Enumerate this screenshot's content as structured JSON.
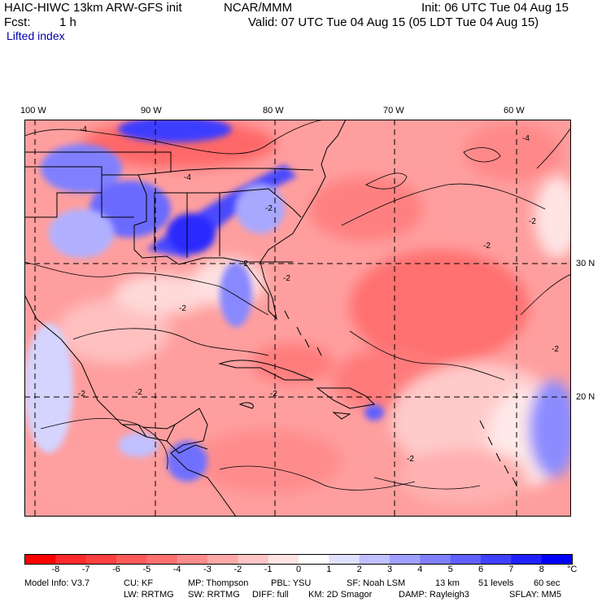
{
  "header": {
    "model": "HAIC-HIWC 13km ARW-GFS init",
    "org": "NCAR/MMM",
    "init": "Init: 06 UTC Tue 04 Aug 15",
    "fcst_label": "Fcst:",
    "fcst_value": "1 h",
    "valid": "Valid: 07 UTC Tue 04 Aug 15 (05 LDT Tue 04 Aug 15)",
    "field": "Lifted index"
  },
  "map": {
    "lon_labels": [
      "100 W",
      "90 W",
      "80 W",
      "70 W",
      "60 W"
    ],
    "lat_labels": [
      "30 N",
      "20 N"
    ],
    "contour_labels": [
      "-4",
      "-4",
      "-2",
      "-2",
      "-2",
      "-2",
      "-2",
      "-2",
      "-4",
      "-2",
      "-2",
      "-2",
      "-2",
      "-2"
    ],
    "colors": {
      "ocean_base": "#ff9c9c",
      "land_low": "#c8c8ff",
      "graticule": "#000000"
    }
  },
  "colorbar": {
    "ticks": [
      "-8",
      "-7",
      "-6",
      "-5",
      "-4",
      "-3",
      "-2",
      "-1",
      "0",
      "1",
      "2",
      "3",
      "4",
      "5",
      "6",
      "7",
      "8"
    ],
    "unit": "°C",
    "colors": [
      "#ff0000",
      "#ff2a2a",
      "#ff4040",
      "#ff5a5a",
      "#ff7070",
      "#ff8c8c",
      "#ffa8a8",
      "#ffc4c4",
      "#ffe2e2",
      "#ffffff",
      "#e0e0ff",
      "#c0c0ff",
      "#a0a0ff",
      "#8080ff",
      "#6060ff",
      "#4040ff",
      "#2020ff",
      "#0000ff"
    ]
  },
  "footer": {
    "line1": [
      "Model Info: V3.7",
      "CU: KF",
      "MP: Thompson",
      "PBL: YSU",
      "SF: Noah LSM",
      "13 km",
      "51 levels",
      "60 sec"
    ],
    "line2": [
      "LW: RRTMG",
      "SW: RRTMG",
      "DIFF: full",
      "KM: 2D Smagor",
      "DAMP: Rayleigh3",
      "SFLAY: MM5"
    ]
  }
}
